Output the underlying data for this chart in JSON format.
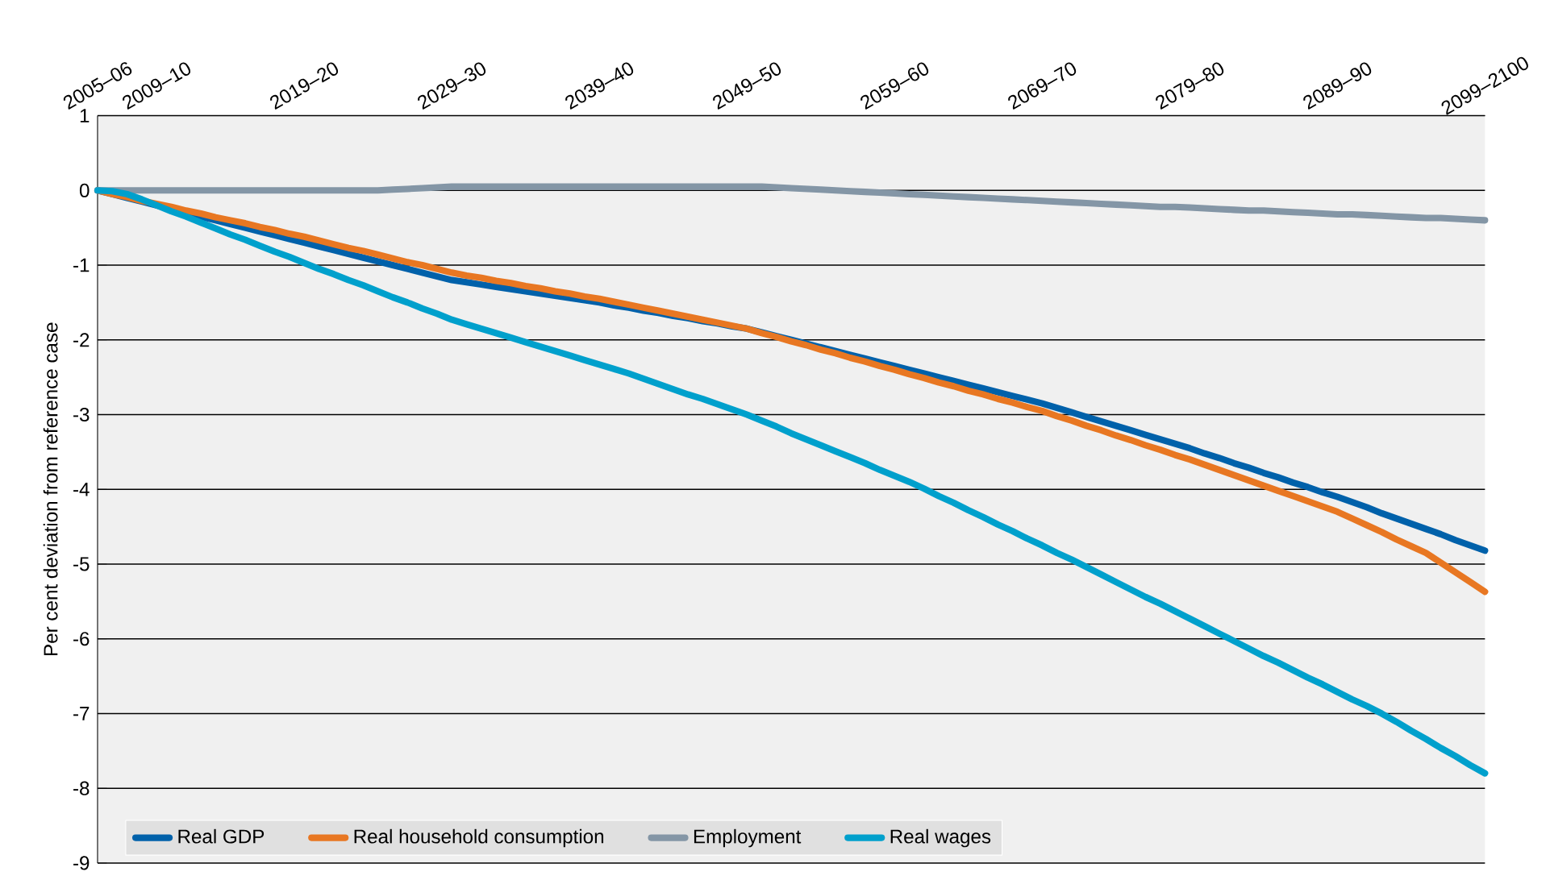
{
  "chart_data": {
    "type": "line",
    "ylabel": "Per cent deviation from reference case",
    "categories": [
      "2005–06",
      null,
      null,
      null,
      "2009–10",
      null,
      null,
      null,
      null,
      null,
      null,
      null,
      null,
      null,
      "2019–20",
      null,
      null,
      null,
      null,
      null,
      null,
      null,
      null,
      null,
      "2029–30",
      null,
      null,
      null,
      null,
      null,
      null,
      null,
      null,
      null,
      "2039–40",
      null,
      null,
      null,
      null,
      null,
      null,
      null,
      null,
      null,
      "2049–50",
      null,
      null,
      null,
      null,
      null,
      null,
      null,
      null,
      null,
      "2059–60",
      null,
      null,
      null,
      null,
      null,
      null,
      null,
      null,
      null,
      "2069–70",
      null,
      null,
      null,
      null,
      null,
      null,
      null,
      null,
      null,
      "2079–80",
      null,
      null,
      null,
      null,
      null,
      null,
      null,
      null,
      null,
      "2089–90",
      null,
      null,
      null,
      null,
      null,
      null,
      null,
      null,
      null,
      "2099–2100"
    ],
    "series": [
      {
        "name": "Real GDP",
        "color": "#0061aa",
        "values": [
          0,
          -0.05,
          -0.1,
          -0.15,
          -0.2,
          -0.25,
          -0.3,
          -0.35,
          -0.4,
          -0.45,
          -0.5,
          -0.55,
          -0.6,
          -0.65,
          -0.7,
          -0.75,
          -0.8,
          -0.85,
          -0.9,
          -0.95,
          -1.0,
          -1.05,
          -1.1,
          -1.15,
          -1.2,
          -1.23,
          -1.26,
          -1.29,
          -1.32,
          -1.35,
          -1.38,
          -1.41,
          -1.44,
          -1.47,
          -1.5,
          -1.54,
          -1.57,
          -1.61,
          -1.64,
          -1.68,
          -1.71,
          -1.75,
          -1.78,
          -1.82,
          -1.85,
          -1.9,
          -1.95,
          -2.0,
          -2.05,
          -2.1,
          -2.15,
          -2.2,
          -2.25,
          -2.3,
          -2.35,
          -2.4,
          -2.45,
          -2.5,
          -2.55,
          -2.6,
          -2.65,
          -2.7,
          -2.75,
          -2.8,
          -2.85,
          -2.91,
          -2.97,
          -3.03,
          -3.09,
          -3.15,
          -3.21,
          -3.27,
          -3.33,
          -3.39,
          -3.45,
          -3.52,
          -3.58,
          -3.65,
          -3.71,
          -3.78,
          -3.84,
          -3.91,
          -3.97,
          -4.04,
          -4.1,
          -4.17,
          -4.24,
          -4.32,
          -4.39,
          -4.46,
          -4.53,
          -4.6,
          -4.68,
          -4.75,
          -4.82
        ]
      },
      {
        "name": "Real household consumption",
        "color": "#e87722",
        "values": [
          0,
          -0.05,
          -0.09,
          -0.14,
          -0.18,
          -0.22,
          -0.27,
          -0.31,
          -0.36,
          -0.4,
          -0.44,
          -0.49,
          -0.53,
          -0.58,
          -0.62,
          -0.67,
          -0.72,
          -0.77,
          -0.81,
          -0.86,
          -0.91,
          -0.96,
          -1.0,
          -1.05,
          -1.1,
          -1.14,
          -1.17,
          -1.21,
          -1.24,
          -1.28,
          -1.31,
          -1.35,
          -1.38,
          -1.42,
          -1.45,
          -1.49,
          -1.53,
          -1.57,
          -1.61,
          -1.65,
          -1.69,
          -1.73,
          -1.77,
          -1.81,
          -1.85,
          -1.91,
          -1.96,
          -2.02,
          -2.07,
          -2.13,
          -2.18,
          -2.24,
          -2.29,
          -2.35,
          -2.4,
          -2.46,
          -2.51,
          -2.57,
          -2.62,
          -2.68,
          -2.73,
          -2.79,
          -2.84,
          -2.9,
          -2.95,
          -3.02,
          -3.08,
          -3.15,
          -3.21,
          -3.28,
          -3.34,
          -3.41,
          -3.47,
          -3.54,
          -3.6,
          -3.67,
          -3.74,
          -3.81,
          -3.88,
          -3.95,
          -4.02,
          -4.09,
          -4.16,
          -4.23,
          -4.3,
          -4.39,
          -4.48,
          -4.57,
          -4.67,
          -4.76,
          -4.85,
          -4.98,
          -5.11,
          -5.24,
          -5.37
        ]
      },
      {
        "name": "Employment",
        "color": "#8496a6",
        "values": [
          0,
          0,
          0,
          0,
          0,
          0,
          0,
          0,
          0,
          0,
          0,
          0,
          0,
          0,
          0,
          0,
          0,
          0,
          0,
          0,
          0.01,
          0.02,
          0.03,
          0.04,
          0.05,
          0.05,
          0.05,
          0.05,
          0.05,
          0.05,
          0.05,
          0.05,
          0.05,
          0.05,
          0.05,
          0.05,
          0.05,
          0.05,
          0.05,
          0.05,
          0.05,
          0.05,
          0.05,
          0.05,
          0.05,
          0.05,
          0.04,
          0.03,
          0.02,
          0.01,
          0,
          -0.01,
          -0.02,
          -0.03,
          -0.04,
          -0.05,
          -0.06,
          -0.07,
          -0.08,
          -0.09,
          -0.1,
          -0.11,
          -0.12,
          -0.13,
          -0.14,
          -0.15,
          -0.16,
          -0.17,
          -0.18,
          -0.19,
          -0.2,
          -0.21,
          -0.22,
          -0.22,
          -0.23,
          -0.24,
          -0.25,
          -0.26,
          -0.27,
          -0.27,
          -0.28,
          -0.29,
          -0.3,
          -0.31,
          -0.32,
          -0.32,
          -0.33,
          -0.34,
          -0.35,
          -0.36,
          -0.37,
          -0.37,
          -0.38,
          -0.39,
          -0.4
        ]
      },
      {
        "name": "Real wages",
        "color": "#00a0cc",
        "values": [
          0,
          -0.01,
          -0.05,
          -0.12,
          -0.2,
          -0.28,
          -0.35,
          -0.43,
          -0.51,
          -0.59,
          -0.66,
          -0.74,
          -0.82,
          -0.89,
          -0.97,
          -1.05,
          -1.12,
          -1.2,
          -1.27,
          -1.35,
          -1.43,
          -1.5,
          -1.58,
          -1.65,
          -1.73,
          -1.79,
          -1.85,
          -1.91,
          -1.97,
          -2.03,
          -2.09,
          -2.15,
          -2.21,
          -2.27,
          -2.33,
          -2.39,
          -2.45,
          -2.52,
          -2.59,
          -2.66,
          -2.73,
          -2.79,
          -2.86,
          -2.93,
          -3.0,
          -3.08,
          -3.16,
          -3.25,
          -3.33,
          -3.41,
          -3.49,
          -3.57,
          -3.65,
          -3.74,
          -3.82,
          -3.9,
          -3.99,
          -4.09,
          -4.18,
          -4.28,
          -4.37,
          -4.47,
          -4.56,
          -4.66,
          -4.75,
          -4.85,
          -4.94,
          -5.04,
          -5.14,
          -5.24,
          -5.34,
          -5.44,
          -5.53,
          -5.63,
          -5.73,
          -5.83,
          -5.93,
          -6.03,
          -6.13,
          -6.23,
          -6.32,
          -6.42,
          -6.52,
          -6.61,
          -6.71,
          -6.81,
          -6.9,
          -7.0,
          -7.11,
          -7.23,
          -7.34,
          -7.46,
          -7.57,
          -7.69,
          -7.8
        ]
      }
    ],
    "ylim": [
      -9,
      1
    ],
    "yticks": [
      -9,
      -8,
      -7,
      -6,
      -5,
      -4,
      -3,
      -2,
      -1,
      0,
      1
    ],
    "grid": "y",
    "legend": "bottom left",
    "marker": "none",
    "line_style": "solid"
  }
}
